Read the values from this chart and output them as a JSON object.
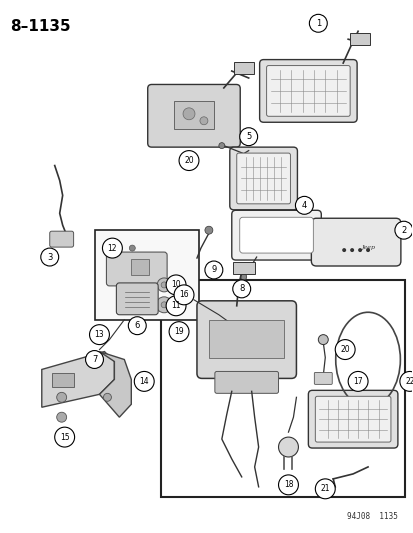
{
  "title": "8–1135",
  "footer": "94J08  1135",
  "bg_color": "#ffffff",
  "line_color": "#333333",
  "light_gray": "#d8d8d8",
  "mid_gray": "#b0b0b0",
  "dark_gray": "#888888"
}
